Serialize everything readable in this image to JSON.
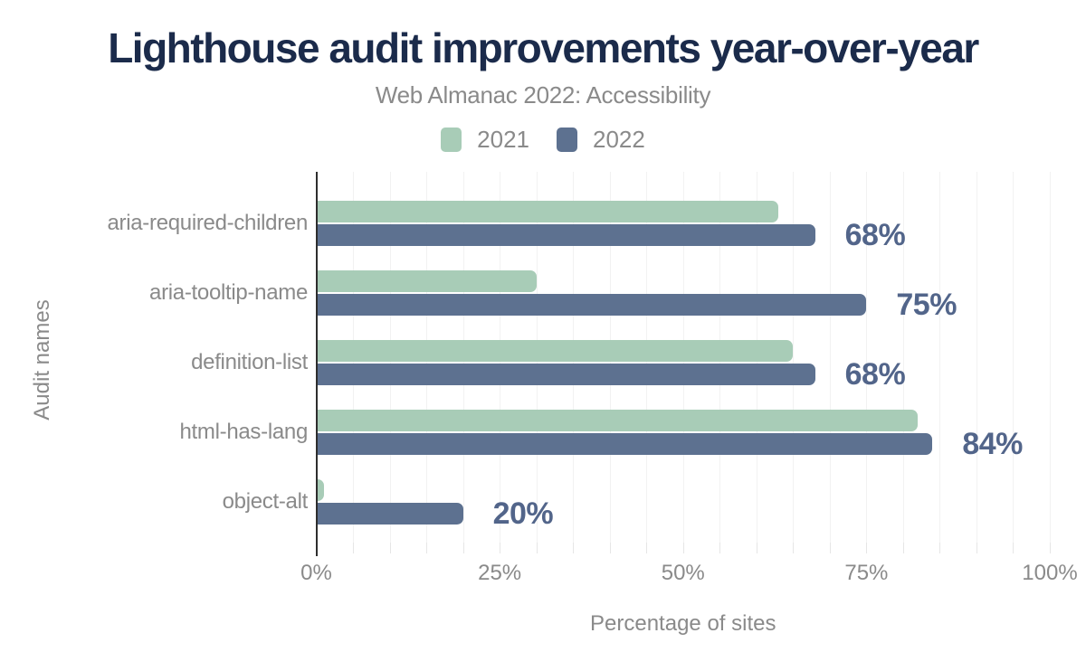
{
  "header": {
    "title": "Lighthouse audit improvements year-over-year",
    "subtitle": "Web Almanac 2022: Accessibility"
  },
  "chart_data": {
    "type": "bar",
    "orientation": "horizontal",
    "title": "Lighthouse audit improvements year-over-year",
    "subtitle": "Web Almanac 2022: Accessibility",
    "categories": [
      "aria-required-children",
      "aria-tooltip-name",
      "definition-list",
      "html-has-lang",
      "object-alt"
    ],
    "series": [
      {
        "name": "2021",
        "color": "#a8ccb7",
        "values": [
          63,
          30,
          65,
          82,
          1
        ],
        "data_labels": []
      },
      {
        "name": "2022",
        "color": "#5d7190",
        "values": [
          68,
          75,
          68,
          84,
          20
        ],
        "data_labels": [
          "68%",
          "75%",
          "68%",
          "84%",
          "20%"
        ]
      }
    ],
    "xlabel": "Percentage of sites",
    "ylabel": "Audit names",
    "xlim": [
      0,
      100
    ],
    "xtick_values": [
      0,
      25,
      50,
      75,
      100
    ],
    "xtick_labels": [
      "0%",
      "25%",
      "50%",
      "75%",
      "100%"
    ],
    "gridline_step_percent": 5,
    "grid": "vertical",
    "legend_position": "top-center"
  },
  "colors": {
    "title_text": "#1b2b4b",
    "muted_text": "#8a8a8a",
    "data_label_text": "#52658a",
    "axis_line": "#2e2e2e",
    "gridline": "#f2f2f2",
    "background": "#ffffff"
  }
}
